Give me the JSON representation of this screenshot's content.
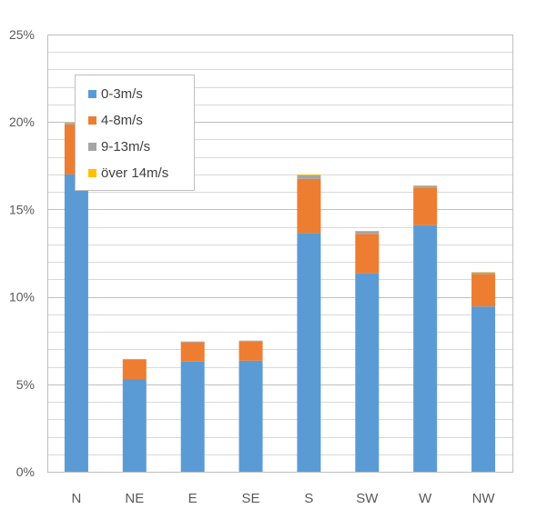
{
  "chart_data": {
    "type": "bar",
    "stacked": true,
    "categories": [
      "N",
      "NE",
      "E",
      "SE",
      "S",
      "SW",
      "W",
      "NW"
    ],
    "series": [
      {
        "name": "0-3m/s",
        "color": "#5b9bd5",
        "values": [
          17.0,
          5.3,
          6.3,
          6.35,
          13.65,
          11.35,
          14.1,
          9.45
        ]
      },
      {
        "name": "4-8m/s",
        "color": "#ed7d31",
        "values": [
          2.85,
          1.1,
          1.1,
          1.1,
          3.1,
          2.25,
          2.15,
          1.85
        ]
      },
      {
        "name": "9-13m/s",
        "color": "#a5a5a5",
        "values": [
          0.1,
          0.05,
          0.05,
          0.05,
          0.2,
          0.15,
          0.1,
          0.1
        ]
      },
      {
        "name": "över 14m/s",
        "color": "#ffc000",
        "values": [
          0.02,
          0.0,
          0.0,
          0.0,
          0.05,
          0.02,
          0.02,
          0.02
        ]
      }
    ],
    "ylim": [
      0,
      25
    ],
    "yticks": [
      "0%",
      "5%",
      "10%",
      "15%",
      "20%",
      "25%"
    ],
    "ytick_values": [
      0,
      5,
      10,
      15,
      20,
      25
    ],
    "minor_grid_step": 1,
    "grid": true,
    "legend_position": "top-left-inside",
    "title": "",
    "xlabel": "",
    "ylabel": ""
  }
}
